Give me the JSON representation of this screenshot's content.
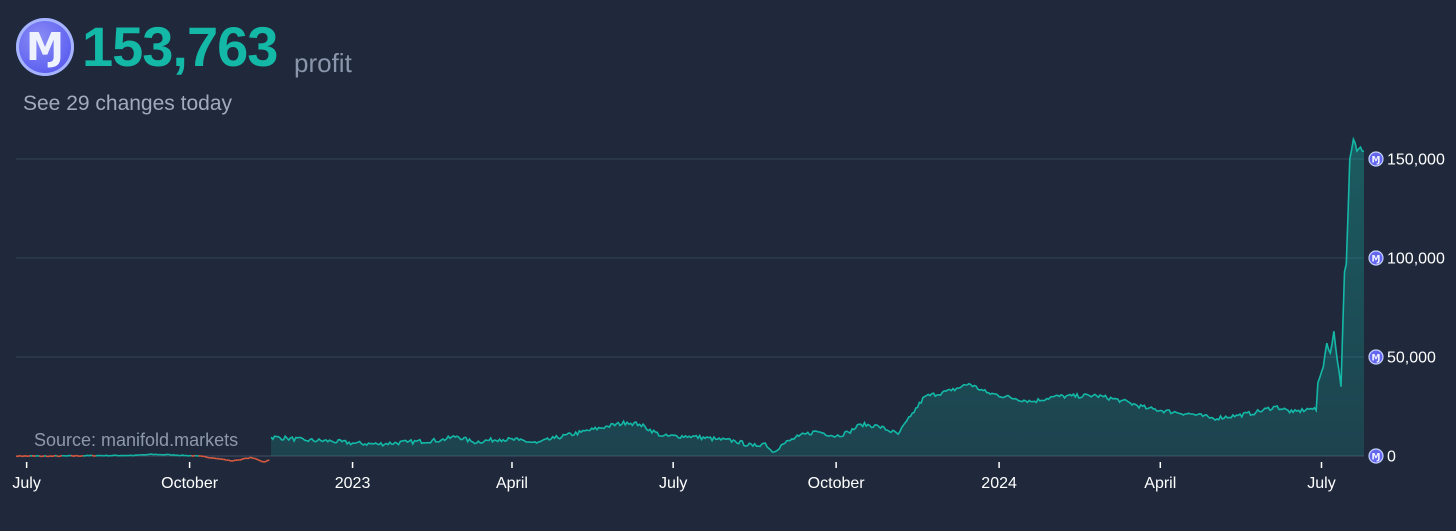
{
  "header": {
    "coin_icon": "mana-coin-icon",
    "coin_glyph": "Ɱ",
    "profit_value": "153,763",
    "profit_label": "profit",
    "changes_link": "See 29 changes today"
  },
  "source": {
    "label": "Source: manifold.markets"
  },
  "colors": {
    "background": "#1f293b",
    "positive": "#14b8a6",
    "negative": "#dc5b3f",
    "grid": "#34435a",
    "axis_text": "#ffffff",
    "coin": "#6366f1"
  },
  "chart_data": {
    "type": "area",
    "title": "",
    "xlabel": "",
    "ylabel": "",
    "ylim": [
      0,
      160000
    ],
    "xlim": [
      "2022-06-25",
      "2024-07-25"
    ],
    "x_tick_labels": [
      {
        "date": "2022-07-01",
        "label": "July"
      },
      {
        "date": "2022-10-01",
        "label": "October"
      },
      {
        "date": "2023-01-01",
        "label": "2023"
      },
      {
        "date": "2023-04-01",
        "label": "April"
      },
      {
        "date": "2023-07-01",
        "label": "July"
      },
      {
        "date": "2023-10-01",
        "label": "October"
      },
      {
        "date": "2024-01-01",
        "label": "2024"
      },
      {
        "date": "2024-04-01",
        "label": "April"
      },
      {
        "date": "2024-07-01",
        "label": "July"
      }
    ],
    "y_ticks": [
      {
        "value": 0,
        "label": "0"
      },
      {
        "value": 50000,
        "label": "50,000"
      },
      {
        "value": 100000,
        "label": "100,000"
      },
      {
        "value": 150000,
        "label": "150,000"
      }
    ],
    "grid": true,
    "y_axis_position": "right",
    "series": [
      {
        "values": [
          [
            "2022-06-25",
            0
          ],
          [
            "2022-07-15",
            -100
          ],
          [
            "2022-08-10",
            200
          ],
          [
            "2022-08-31",
            300
          ],
          [
            "2022-09-10",
            800
          ],
          [
            "2022-09-20",
            600
          ],
          [
            "2022-10-05",
            0
          ],
          [
            "2022-10-15",
            -1000
          ],
          [
            "2022-10-25",
            -2500
          ],
          [
            "2022-11-05",
            -800
          ],
          [
            "2022-11-12",
            -3000
          ],
          [
            "2022-11-15",
            -2000
          ],
          [
            "2022-11-16",
            9500
          ],
          [
            "2022-11-25",
            9000
          ],
          [
            "2022-12-05",
            8000
          ],
          [
            "2022-12-20",
            7500
          ],
          [
            "2023-01-01",
            6500
          ],
          [
            "2023-01-15",
            6000
          ],
          [
            "2023-02-01",
            7000
          ],
          [
            "2023-02-20",
            8000
          ],
          [
            "2023-03-01",
            10000
          ],
          [
            "2023-03-10",
            7000
          ],
          [
            "2023-03-25",
            8500
          ],
          [
            "2023-04-05",
            8000
          ],
          [
            "2023-04-15",
            6500
          ],
          [
            "2023-04-25",
            9000
          ],
          [
            "2023-05-10",
            12000
          ],
          [
            "2023-05-25",
            15000
          ],
          [
            "2023-06-05",
            17000
          ],
          [
            "2023-06-12",
            16000
          ],
          [
            "2023-06-25",
            10000
          ],
          [
            "2023-07-10",
            10000
          ],
          [
            "2023-07-25",
            8500
          ],
          [
            "2023-08-05",
            7500
          ],
          [
            "2023-08-15",
            5000
          ],
          [
            "2023-08-22",
            6500
          ],
          [
            "2023-08-26",
            2000
          ],
          [
            "2023-09-01",
            6000
          ],
          [
            "2023-09-10",
            10000
          ],
          [
            "2023-09-20",
            12500
          ],
          [
            "2023-10-01",
            10000
          ],
          [
            "2023-10-08",
            12000
          ],
          [
            "2023-10-15",
            16000
          ],
          [
            "2023-10-25",
            15000
          ],
          [
            "2023-11-05",
            11000
          ],
          [
            "2023-11-12",
            20000
          ],
          [
            "2023-11-20",
            30000
          ],
          [
            "2023-12-05",
            33000
          ],
          [
            "2023-12-15",
            36500
          ],
          [
            "2023-12-25",
            32000
          ],
          [
            "2024-01-10",
            29000
          ],
          [
            "2024-01-20",
            27500
          ],
          [
            "2024-02-01",
            30000
          ],
          [
            "2024-02-25",
            30500
          ],
          [
            "2024-03-10",
            28000
          ],
          [
            "2024-03-25",
            24000
          ],
          [
            "2024-04-10",
            22000
          ],
          [
            "2024-04-20",
            21000
          ],
          [
            "2024-05-01",
            19000
          ],
          [
            "2024-05-15",
            20500
          ],
          [
            "2024-05-25",
            22000
          ],
          [
            "2024-06-05",
            25000
          ],
          [
            "2024-06-15",
            22000
          ],
          [
            "2024-06-25",
            24000
          ],
          [
            "2024-06-28",
            23000
          ],
          [
            "2024-06-29",
            37000
          ],
          [
            "2024-07-02",
            45000
          ],
          [
            "2024-07-04",
            57000
          ],
          [
            "2024-07-06",
            52000
          ],
          [
            "2024-07-08",
            63000
          ],
          [
            "2024-07-10",
            48000
          ],
          [
            "2024-07-12",
            35000
          ],
          [
            "2024-07-14",
            93000
          ],
          [
            "2024-07-15",
            97000
          ],
          [
            "2024-07-17",
            150000
          ],
          [
            "2024-07-19",
            160000
          ],
          [
            "2024-07-21",
            154000
          ],
          [
            "2024-07-23",
            156000
          ],
          [
            "2024-07-25",
            153763
          ]
        ]
      }
    ]
  }
}
